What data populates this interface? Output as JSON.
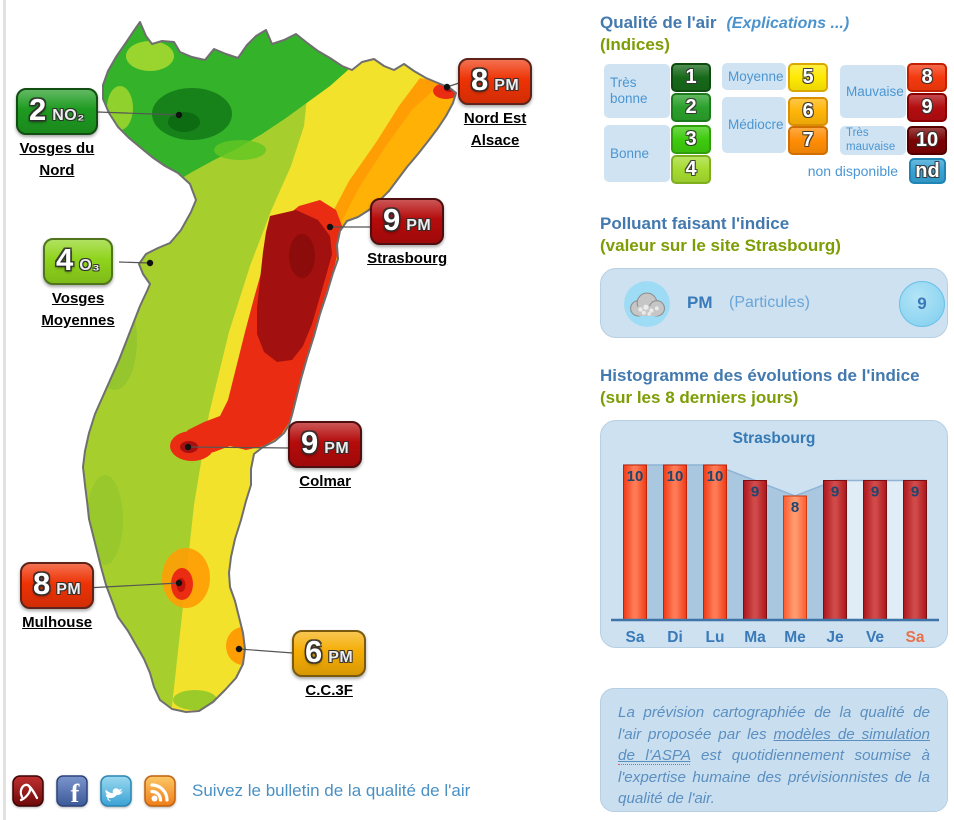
{
  "map": {
    "stations": [
      {
        "id": "vosges-du-nord",
        "value": "2",
        "pollutant": "NO₂",
        "name": "Vosges du Nord",
        "label_lines": [
          "Vosges du",
          "Nord"
        ],
        "color": "#1e9b20",
        "border": "#124d12"
      },
      {
        "id": "nord-est-alsace",
        "value": "8",
        "pollutant": "PM",
        "name": "Nord Est Alsace",
        "label_lines": [
          "Nord Est",
          "Alsace"
        ],
        "color": "#ee3305",
        "border": "#5e241a"
      },
      {
        "id": "strasbourg",
        "value": "9",
        "pollutant": "PM",
        "name": "Strasbourg",
        "label_lines": [
          "Strasbourg"
        ],
        "color": "#b50b0b",
        "border": "#4d0f0f"
      },
      {
        "id": "vosges-moyennes",
        "value": "4",
        "pollutant": "O₃",
        "name": "Vosges Moyennes",
        "label_lines": [
          "Vosges",
          "Moyennes"
        ],
        "color": "#8fd41c",
        "border": "#50751c"
      },
      {
        "id": "colmar",
        "value": "9",
        "pollutant": "PM",
        "name": "Colmar",
        "label_lines": [
          "Colmar"
        ],
        "color": "#b50b0b",
        "border": "#4d0f0f"
      },
      {
        "id": "mulhouse",
        "value": "8",
        "pollutant": "PM",
        "name": "Mulhouse",
        "label_lines": [
          "Mulhouse"
        ],
        "color": "#ee3305",
        "border": "#5e241a"
      },
      {
        "id": "cc3f",
        "value": "6",
        "pollutant": "PM",
        "name": "C.C.3F",
        "label_lines": [
          "C.C.3F"
        ],
        "color": "#f5ad05",
        "border": "#7a5a10"
      }
    ]
  },
  "legend": {
    "title": "Qualité de l'air",
    "link": "(Explications ...)",
    "subtitle": "(Indices)",
    "groups": [
      {
        "label": "Très bonne",
        "indices": [
          {
            "value": "1",
            "color": "#17691a",
            "border": "#0c4a0e"
          },
          {
            "value": "2",
            "color": "#2ba02b",
            "border": "#1b7a1b"
          }
        ]
      },
      {
        "label": "Bonne",
        "indices": [
          {
            "value": "3",
            "color": "#3ecb0e",
            "border": "#2f9e0a"
          },
          {
            "value": "4",
            "color": "#a5db30",
            "border": "#7fae1f"
          }
        ]
      },
      {
        "label": "Moyenne",
        "indices": [
          {
            "value": "5",
            "color": "#ffe903",
            "border": "#dba800"
          }
        ]
      },
      {
        "label": "Médiocre",
        "indices": [
          {
            "value": "6",
            "color": "#ffb508",
            "border": "#d98f00"
          },
          {
            "value": "7",
            "color": "#ff8d05",
            "border": "#d06e00"
          }
        ]
      },
      {
        "label": "Mauvaise",
        "indices": [
          {
            "value": "8",
            "color": "#f4390e",
            "border": "#c22000"
          },
          {
            "value": "9",
            "color": "#b30d10",
            "border": "#8a0000"
          }
        ]
      },
      {
        "label": "Très mauvaise",
        "indices": [
          {
            "value": "10",
            "color": "#7c0303",
            "border": "#550000"
          }
        ]
      },
      {
        "label": "non disponible",
        "indices": [
          {
            "value": "nd",
            "color": "#36a3d4",
            "border": "#1f85b5"
          }
        ]
      }
    ]
  },
  "pollutant_panel": {
    "heading": "Polluant faisant l'indice",
    "subheading": "(valeur sur le site Strasbourg)",
    "code": "PM",
    "name": "(Particules)",
    "value": "9"
  },
  "chart_data": {
    "type": "bar",
    "heading": "Histogramme des évolutions de l'indice",
    "subheading": "(sur les 8 derniers jours)",
    "title": "Strasbourg",
    "categories": [
      "Sa",
      "Di",
      "Lu",
      "Ma",
      "Me",
      "Je",
      "Ve",
      "Sa"
    ],
    "values": [
      10,
      10,
      10,
      9,
      8,
      9,
      9,
      9
    ],
    "ylim": [
      0,
      10
    ],
    "bar_colors": [
      "#ef3b16",
      "#ef3b16",
      "#ef3b16",
      "#ab161b",
      "#ff5a2e",
      "#ab161b",
      "#ab161b",
      "#ab161b"
    ],
    "bar_colors_light": [
      "#ff7b56",
      "#ff7b56",
      "#ff7b56",
      "#d14a4a",
      "#ff9a70",
      "#d14a4a",
      "#d14a4a",
      "#d14a4a"
    ],
    "bar_strokes": [
      "#c32104",
      "#c32104",
      "#c32104",
      "#7c0d11",
      "#d0380e",
      "#7c0d11",
      "#7c0d11",
      "#7c0d11"
    ],
    "value_label_color": "#1c4670",
    "day_label_color": "#3a7ab8",
    "last_day_color": "#e8714b",
    "area_color_past": "#a9c8e0",
    "area_color_recent": "#e0edf6",
    "line_color": "#8fb4d6",
    "baseline_color": "#3f74a8",
    "legend_position": "none",
    "grid": false
  },
  "disclaimer": {
    "text_before": "La prévision cartographiée de la qualité de l'air proposée par les ",
    "link_part1": "modèles de simulation",
    "link_part2": "de l'ASPA",
    "text_after": " est quotidiennement soumise à l'expertise humaine des prévisionnistes de la qualité de l'air."
  },
  "footer": {
    "text": "Suivez le bulletin de la qualité de l'air",
    "icons": [
      "pdf-icon",
      "facebook-icon",
      "twitter-icon",
      "rss-icon"
    ]
  }
}
